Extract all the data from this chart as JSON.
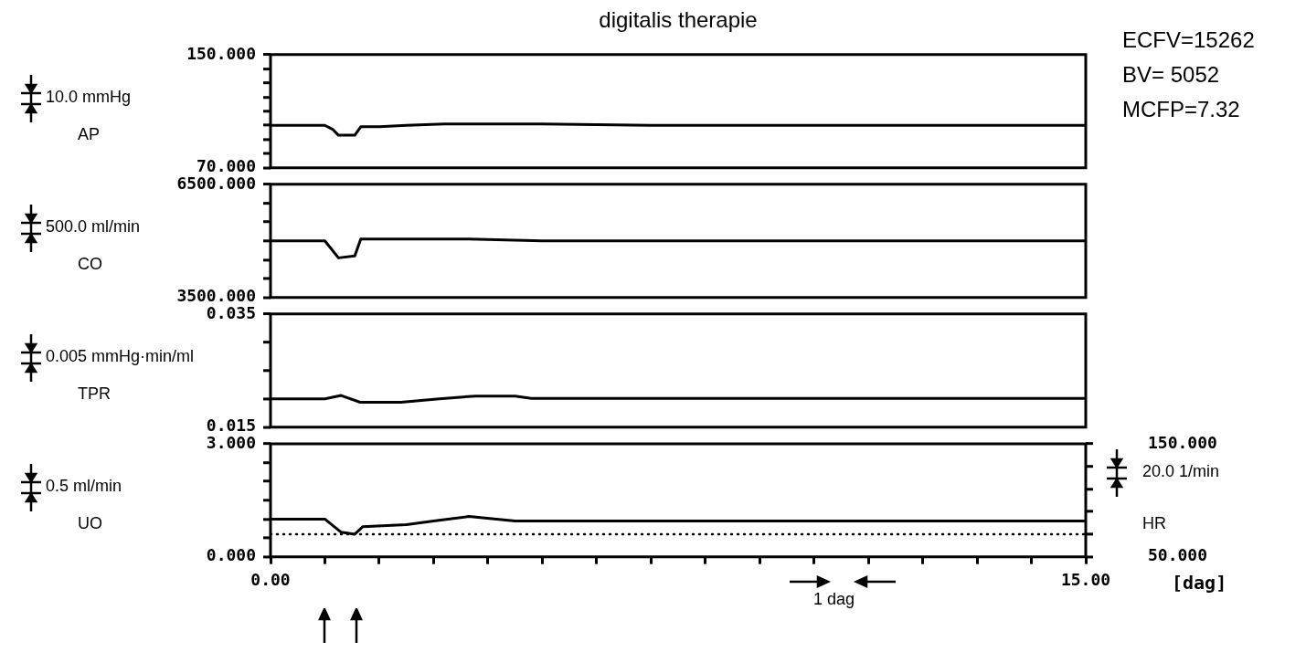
{
  "chart_data": [
    {
      "type": "line",
      "title": "digitalis therapie",
      "ylabel": "AP",
      "annotations": [
        "10.0 mmHg",
        "ECFV=15262",
        "BV= 5052",
        "MCFP=7.32"
      ],
      "xlim": [
        0,
        15
      ],
      "ylim": [
        70,
        150
      ],
      "yticks": [
        {
          "value": 70,
          "label": "70.000"
        },
        {
          "value": 80,
          "label": null
        },
        {
          "value": 90,
          "label": null
        },
        {
          "value": 100,
          "label": null
        },
        {
          "value": 110,
          "label": null
        },
        {
          "value": 120,
          "label": null
        },
        {
          "value": 130,
          "label": null
        },
        {
          "value": 140,
          "label": null
        },
        {
          "value": 150,
          "label": "150.000"
        }
      ],
      "tick_labels": "y",
      "grid": false,
      "legend": false,
      "line_style": "solid",
      "series": [
        {
          "color": "#000000",
          "x": [
            0,
            1.0,
            1.15,
            1.25,
            1.55,
            1.66,
            2.0,
            2.5,
            3.2,
            4.0,
            5.0,
            7,
            10,
            13,
            15
          ],
          "values": [
            100,
            100,
            97,
            93,
            93,
            99,
            99,
            100,
            101,
            101,
            101,
            100,
            100,
            100,
            100
          ]
        }
      ]
    },
    {
      "type": "line",
      "ylabel": "CO",
      "annotations": [
        "500.0 ml/min"
      ],
      "xlim": [
        0,
        15
      ],
      "ylim": [
        3500,
        6500
      ],
      "yticks": [
        {
          "value": 3500,
          "label": "3500.000"
        },
        {
          "value": 4000,
          "label": null
        },
        {
          "value": 4500,
          "label": null
        },
        {
          "value": 5000,
          "label": null
        },
        {
          "value": 5500,
          "label": null
        },
        {
          "value": 6000,
          "label": null
        },
        {
          "value": 6500,
          "label": "6500.000"
        }
      ],
      "tick_labels": "y",
      "grid": false,
      "legend": false,
      "line_style": "solid",
      "series": [
        {
          "color": "#000000",
          "x": [
            0,
            1.0,
            1.25,
            1.55,
            1.66,
            2.5,
            3.65,
            5.0,
            15
          ],
          "values": [
            5000,
            5000,
            4550,
            4600,
            5050,
            5050,
            5050,
            5000,
            5000
          ]
        }
      ]
    },
    {
      "type": "line",
      "ylabel": "TPR",
      "annotations": [
        "0.005 mmHg·min/ml"
      ],
      "xlim": [
        0,
        15
      ],
      "ylim": [
        0.015,
        0.035
      ],
      "yticks": [
        {
          "value": 0.015,
          "label": "0.015"
        },
        {
          "value": 0.02,
          "label": null
        },
        {
          "value": 0.025,
          "label": null
        },
        {
          "value": 0.03,
          "label": null
        },
        {
          "value": 0.035,
          "label": "0.035"
        }
      ],
      "tick_labels": "y",
      "grid": false,
      "legend": false,
      "line_style": "solid",
      "series": [
        {
          "color": "#000000",
          "x": [
            0,
            1.0,
            1.3,
            1.65,
            2.4,
            3.1,
            3.77,
            4.5,
            4.8,
            15
          ],
          "values": [
            0.02,
            0.02,
            0.0206,
            0.0194,
            0.0194,
            0.02,
            0.0205,
            0.0205,
            0.0201,
            0.0201
          ]
        }
      ]
    },
    {
      "type": "line",
      "ylabel": "UO",
      "y2label": "HR",
      "xlabel": "[dag]",
      "annotations": [
        "0.5 ml/min",
        "20.0 1/min",
        "1 dag"
      ],
      "xlim": [
        0,
        15
      ],
      "xticks": [
        {
          "value": 0,
          "label": "0.00"
        },
        {
          "value": 1,
          "label": null
        },
        {
          "value": 2,
          "label": null
        },
        {
          "value": 3,
          "label": null
        },
        {
          "value": 4,
          "label": null
        },
        {
          "value": 5,
          "label": null
        },
        {
          "value": 6,
          "label": null
        },
        {
          "value": 7,
          "label": null
        },
        {
          "value": 8,
          "label": null
        },
        {
          "value": 9,
          "label": null
        },
        {
          "value": 10,
          "label": null
        },
        {
          "value": 11,
          "label": null
        },
        {
          "value": 12,
          "label": null
        },
        {
          "value": 13,
          "label": null
        },
        {
          "value": 14,
          "label": null
        },
        {
          "value": 15,
          "label": "15.00"
        }
      ],
      "ylim": [
        0,
        3
      ],
      "yticks": [
        {
          "value": 0,
          "label": "0.000"
        },
        {
          "value": 0.5,
          "label": null
        },
        {
          "value": 1,
          "label": null
        },
        {
          "value": 1.5,
          "label": null
        },
        {
          "value": 2,
          "label": null
        },
        {
          "value": 2.5,
          "label": null
        },
        {
          "value": 3,
          "label": "3.000"
        }
      ],
      "y2lim": [
        50,
        150
      ],
      "y2ticks": [
        {
          "value": 50,
          "label": "50.000"
        },
        {
          "value": 70,
          "label": null
        },
        {
          "value": 90,
          "label": null
        },
        {
          "value": 110,
          "label": null
        },
        {
          "value": 130,
          "label": null
        },
        {
          "value": 150,
          "label": "150.000"
        }
      ],
      "grid": false,
      "legend": false,
      "line_style": "solid",
      "series": [
        {
          "color": "#000000",
          "x": [
            0,
            1.0,
            1.3,
            1.55,
            1.7,
            2.5,
            3.0,
            3.65,
            4.5,
            15
          ],
          "values": [
            1.0,
            1.0,
            0.65,
            0.6,
            0.8,
            0.85,
            0.95,
            1.07,
            0.95,
            0.95
          ]
        },
        {
          "color": "#000000",
          "axis": "y2",
          "line_style": "dotted",
          "x": [
            0,
            15
          ],
          "values": [
            70,
            70
          ]
        }
      ]
    }
  ]
}
